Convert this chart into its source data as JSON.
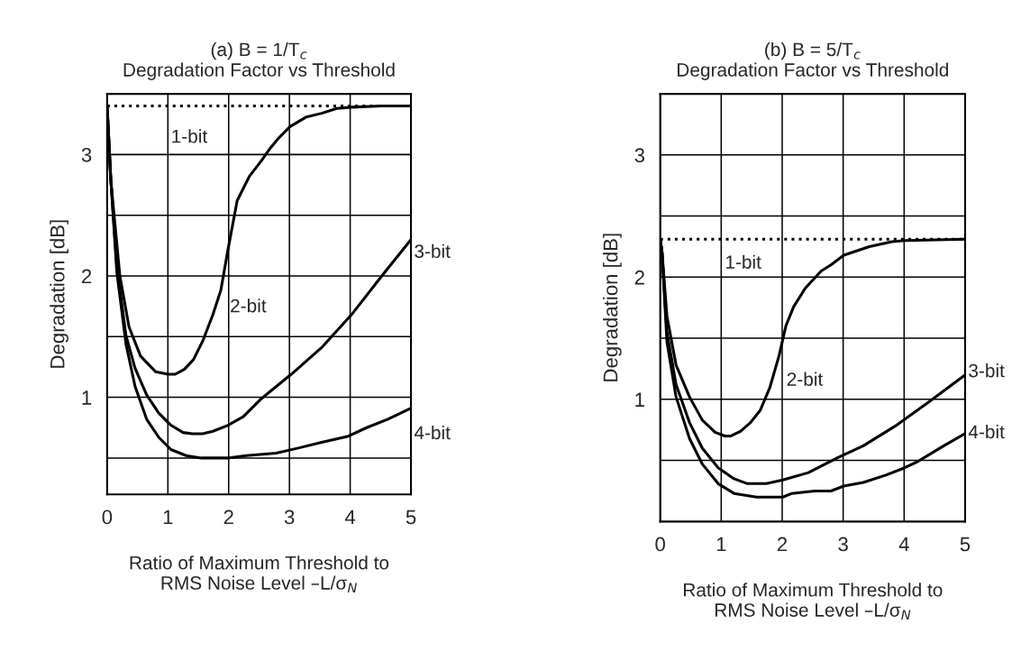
{
  "chart_data": [
    {
      "type": "line",
      "title": "(a) B = 1/T$_{c}$\nDegradation Factor vs Threshold",
      "xlabel": "Ratio of Maximum Threshold to\nRMS Noise Level –L/σ$_{N}$",
      "ylabel": "Degradation [dB]",
      "xlim": [
        0,
        5
      ],
      "ylim": [
        0.2,
        3.5
      ],
      "xticks": [
        0,
        1,
        2,
        3,
        4,
        5
      ],
      "yticks": [
        {
          "value": 0.5,
          "label": null
        },
        1,
        {
          "value": 1.5,
          "label": null
        },
        2,
        {
          "value": 2.5,
          "label": null
        },
        3
      ],
      "grid": true,
      "legend": false,
      "series": [
        {
          "name": "1-bit",
          "color": "#000000",
          "line_style": "dotted",
          "x": [
            0,
            5
          ],
          "values": [
            3.4,
            3.4
          ]
        },
        {
          "name": "2-bit",
          "color": "#000000",
          "line_style": "solid",
          "x": [
            0,
            0.06,
            0.21,
            0.36,
            0.55,
            0.8,
            1.0,
            1.12,
            1.27,
            1.42,
            1.57,
            1.74,
            1.87,
            1.99,
            2.14,
            2.34,
            2.54,
            2.68,
            2.83,
            3.01,
            3.28,
            3.53,
            3.78,
            4.02,
            4.52,
            5.0
          ],
          "values": [
            3.4,
            2.79,
            2.0,
            1.58,
            1.34,
            1.21,
            1.19,
            1.19,
            1.23,
            1.31,
            1.46,
            1.68,
            1.88,
            2.22,
            2.62,
            2.82,
            2.95,
            3.05,
            3.14,
            3.23,
            3.31,
            3.34,
            3.38,
            3.39,
            3.4,
            3.4
          ]
        },
        {
          "name": "3-bit",
          "color": "#000000",
          "line_style": "solid",
          "x": [
            0,
            0.06,
            0.16,
            0.31,
            0.46,
            0.65,
            0.85,
            1.05,
            1.25,
            1.4,
            1.57,
            1.74,
            1.99,
            2.24,
            2.54,
            3.03,
            3.53,
            4.02,
            4.52,
            5.0
          ],
          "values": [
            3.4,
            2.8,
            2.08,
            1.51,
            1.24,
            1.02,
            0.87,
            0.77,
            0.71,
            0.7,
            0.7,
            0.72,
            0.77,
            0.84,
            0.99,
            1.19,
            1.41,
            1.68,
            2.0,
            2.3
          ]
        },
        {
          "name": "4-bit",
          "color": "#000000",
          "line_style": "solid",
          "x": [
            0,
            0.06,
            0.16,
            0.31,
            0.46,
            0.65,
            0.85,
            1.05,
            1.3,
            1.55,
            1.99,
            2.29,
            2.78,
            3.13,
            3.53,
            3.97,
            4.27,
            4.62,
            5.0
          ],
          "values": [
            3.4,
            2.8,
            2.03,
            1.44,
            1.09,
            0.82,
            0.67,
            0.57,
            0.52,
            0.5,
            0.5,
            0.52,
            0.54,
            0.58,
            0.63,
            0.68,
            0.75,
            0.82,
            0.91
          ]
        }
      ]
    },
    {
      "type": "line",
      "title": "(b) B = 5/T$_{c}$\nDegradation Factor vs Threshold",
      "xlabel": "Ratio of Maximum Threshold to\nRMS Noise Level –L/σ$_{N}$",
      "ylabel": "Degradation [dB]",
      "xlim": [
        0,
        5
      ],
      "ylim": [
        0,
        3.5
      ],
      "xticks": [
        0,
        1,
        2,
        3,
        4,
        5
      ],
      "yticks": [
        {
          "value": 0.5,
          "label": null
        },
        1,
        {
          "value": 1.5,
          "label": null
        },
        2,
        {
          "value": 2.5,
          "label": null
        },
        3
      ],
      "grid": true,
      "legend": false,
      "series": [
        {
          "name": "1-bit",
          "color": "#000000",
          "line_style": "dotted",
          "x": [
            0,
            5
          ],
          "values": [
            2.31,
            2.31
          ]
        },
        {
          "name": "2-bit",
          "color": "#000000",
          "line_style": "solid",
          "x": [
            0,
            0.03,
            0.11,
            0.26,
            0.48,
            0.69,
            0.9,
            1.06,
            1.16,
            1.32,
            1.48,
            1.64,
            1.8,
            1.95,
            2.06,
            2.19,
            2.38,
            2.64,
            2.8,
            3.01,
            3.43,
            3.8,
            4.01,
            5.0
          ],
          "values": [
            2.31,
            2.2,
            1.68,
            1.28,
            1.02,
            0.83,
            0.73,
            0.7,
            0.7,
            0.74,
            0.81,
            0.91,
            1.1,
            1.36,
            1.6,
            1.76,
            1.91,
            2.05,
            2.1,
            2.18,
            2.25,
            2.29,
            2.3,
            2.31
          ]
        },
        {
          "name": "3-bit",
          "color": "#000000",
          "line_style": "solid",
          "x": [
            0,
            0.03,
            0.11,
            0.26,
            0.48,
            0.69,
            0.95,
            1.21,
            1.43,
            1.74,
            2.01,
            2.43,
            2.9,
            3.33,
            3.85,
            4.38,
            5.0
          ],
          "values": [
            2.31,
            2.2,
            1.55,
            1.12,
            0.81,
            0.6,
            0.44,
            0.35,
            0.31,
            0.31,
            0.34,
            0.4,
            0.52,
            0.62,
            0.78,
            0.97,
            1.2
          ]
        },
        {
          "name": "4-bit",
          "color": "#000000",
          "line_style": "solid",
          "x": [
            0,
            0.03,
            0.11,
            0.26,
            0.48,
            0.69,
            0.95,
            1.21,
            1.58,
            2.01,
            2.16,
            2.53,
            2.8,
            3.01,
            3.33,
            3.7,
            4.01,
            4.22,
            4.65,
            5.0
          ],
          "values": [
            2.31,
            2.2,
            1.47,
            1.02,
            0.68,
            0.47,
            0.31,
            0.23,
            0.2,
            0.2,
            0.23,
            0.25,
            0.25,
            0.29,
            0.32,
            0.38,
            0.44,
            0.49,
            0.62,
            0.72
          ]
        }
      ]
    }
  ]
}
